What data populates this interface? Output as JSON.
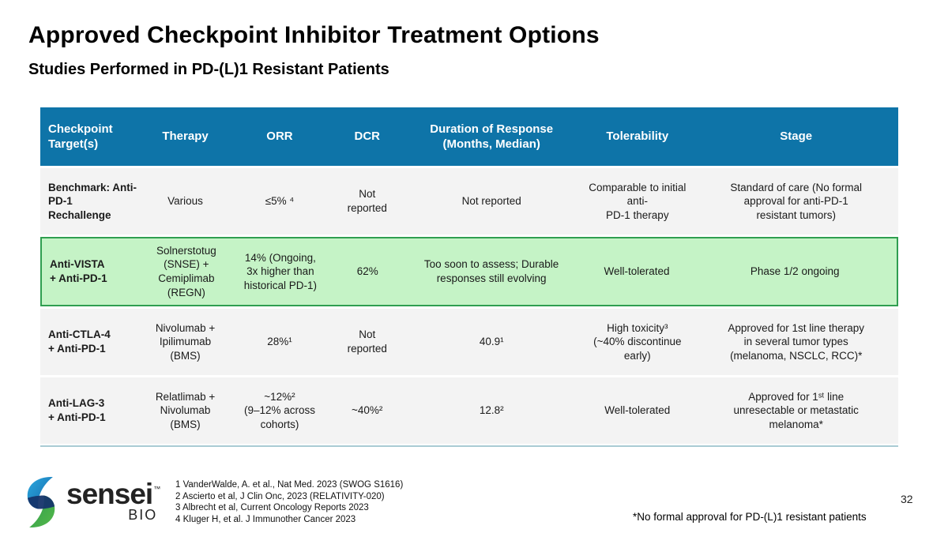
{
  "slide": {
    "title": "Approved Checkpoint Inhibitor Treatment Options",
    "subtitle": "Studies Performed in PD-(L)1 Resistant Patients",
    "page_number": "32",
    "footnote": "*No formal approval for PD-(L)1 resistant patients"
  },
  "table": {
    "headers": [
      "Checkpoint\nTarget(s)",
      "Therapy",
      "ORR",
      "DCR",
      "Duration of Response\n(Months, Median)",
      "Tolerability",
      "Stage"
    ],
    "rows": [
      {
        "target": "Benchmark: Anti-\nPD-1\nRechallenge",
        "therapy": "Various",
        "orr": "≤5% ⁴",
        "dcr": "Not\nreported",
        "duration": "Not reported",
        "tolerability": "Comparable to initial anti-\nPD-1 therapy",
        "stage": "Standard of care (No formal\napproval for anti-PD-1\nresistant tumors)",
        "highlight": false
      },
      {
        "target": "Anti-VISTA\n+ Anti-PD-1",
        "therapy": "Solnerstotug\n(SNSE) +\nCemiplimab\n(REGN)",
        "orr": "14% (Ongoing,\n3x higher than\nhistorical PD-1)",
        "dcr": "62%",
        "duration": "Too soon to assess; Durable\nresponses still evolving",
        "tolerability": "Well-tolerated",
        "stage": "Phase 1/2 ongoing",
        "highlight": true
      },
      {
        "target": "Anti-CTLA-4\n+ Anti-PD-1",
        "therapy": "Nivolumab +\nIpilimumab\n(BMS)",
        "orr": "28%¹",
        "dcr": "Not\nreported",
        "duration": "40.9¹",
        "tolerability": "High toxicity³\n(~40% discontinue early)",
        "stage": "Approved for 1st line therapy\nin several tumor types\n(melanoma, NSCLC, RCC)*",
        "highlight": false
      },
      {
        "target": "Anti-LAG-3\n+ Anti-PD-1",
        "therapy": "Relatlimab +\nNivolumab (BMS)",
        "orr": "~12%²\n(9–12% across\ncohorts)",
        "dcr": "~40%²",
        "duration": "12.8²",
        "tolerability": "Well-tolerated",
        "stage": "Approved for 1ˢᵗ line\nunresectable or metastatic\nmelanoma*",
        "highlight": false
      }
    ]
  },
  "references": [
    "1 VanderWalde, A. et al., Nat Med. 2023 (SWOG S1616)",
    "2 Ascierto et al, J Clin Onc, 2023 (RELATIVITY-020)",
    "3 Albrecht et al, Current Oncology Reports 2023",
    "4 Kluger H, et al. J Immunother Cancer 2023"
  ],
  "logo": {
    "brand": "sensei",
    "tm": "™",
    "sub": "BIO"
  },
  "colors": {
    "header_bg": "#0E74A8",
    "row_bg": "#F3F3F3",
    "highlight_bg": "#C5F3C6",
    "highlight_border": "#2F9E50",
    "accent_line": "#A9CBD4",
    "logo_blue_light": "#2BA9DF",
    "logo_blue_dark": "#1565A8",
    "logo_green_light": "#55B948",
    "logo_green_dark": "#2E9B4F",
    "logo_navy": "#15356B"
  }
}
